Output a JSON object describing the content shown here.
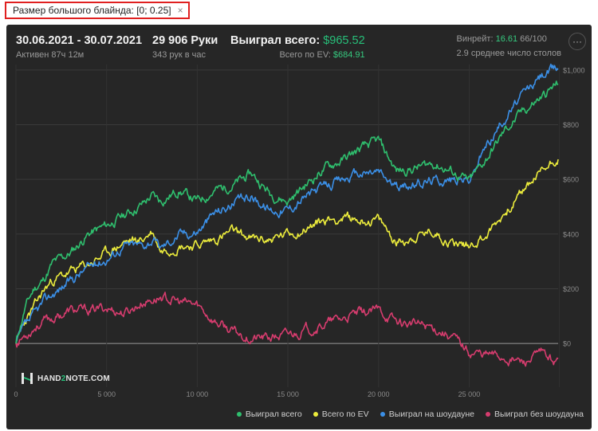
{
  "filter": {
    "label": "Размер большого блайнда: [0; 0.25]",
    "close_glyph": "×"
  },
  "header": {
    "date_range": "30.06.2021 - 30.07.2021",
    "active": "Активен 87ч 12м",
    "hands": "29 906 Руки",
    "hands_per_hour": "343 рук в час",
    "won_label": "Выиграл всего:",
    "won_value": "$965.52",
    "ev_label": "Всего по EV:",
    "ev_value": "$684.91",
    "winrate_label": "Винрейт:",
    "winrate_value": "16.61",
    "winrate_unit": "66/100",
    "tables": "2.9 среднее число столов",
    "menu_glyph": "···"
  },
  "logo": {
    "part1": "HAND",
    "part2": "2",
    "part3": "NOTE.COM"
  },
  "colors": {
    "won": "#2fbf6e",
    "ev": "#ecec3c",
    "showdown": "#3b8fe6",
    "noshowdown": "#d63c6e",
    "background": "#262626"
  },
  "chart_data": {
    "type": "line",
    "x_ticks": [
      0,
      5000,
      10000,
      15000,
      20000,
      25000
    ],
    "x_tick_labels": [
      "0",
      "5 000",
      "10 000",
      "15 000",
      "20 000",
      "25 000"
    ],
    "xlim": [
      0,
      29906
    ],
    "y_ticks": [
      0,
      200,
      400,
      600,
      800,
      1000
    ],
    "y_tick_labels": [
      "$0",
      "$200",
      "$400",
      "$600",
      "$800",
      "$1,000"
    ],
    "ylim": [
      -160,
      1020
    ],
    "grid": true,
    "legend_position": "bottom-right",
    "x": [
      0,
      500,
      1000,
      1500,
      2000,
      3000,
      4000,
      5000,
      6000,
      7000,
      7500,
      8000,
      9000,
      10000,
      11000,
      12000,
      13000,
      14000,
      15000,
      16000,
      17000,
      18000,
      19000,
      20000,
      21000,
      22000,
      23000,
      24000,
      25000,
      26000,
      27000,
      28000,
      29000,
      29906
    ],
    "series": [
      {
        "name": "Выиграл всего",
        "key": "won",
        "values": [
          0,
          130,
          200,
          230,
          290,
          330,
          400,
          430,
          470,
          510,
          540,
          520,
          560,
          520,
          560,
          580,
          620,
          550,
          520,
          580,
          640,
          670,
          710,
          740,
          630,
          640,
          660,
          630,
          590,
          680,
          780,
          850,
          900,
          950
        ]
      },
      {
        "name": "Всего по EV",
        "key": "ev",
        "values": [
          0,
          80,
          130,
          190,
          230,
          260,
          290,
          330,
          370,
          380,
          410,
          340,
          360,
          360,
          380,
          410,
          380,
          380,
          400,
          420,
          450,
          460,
          450,
          450,
          370,
          390,
          410,
          370,
          360,
          400,
          480,
          560,
          630,
          685
        ]
      },
      {
        "name": "Выиграл на шоудауне",
        "key": "showdown",
        "values": [
          0,
          60,
          100,
          150,
          180,
          230,
          280,
          310,
          360,
          360,
          380,
          350,
          400,
          410,
          480,
          510,
          540,
          490,
          490,
          540,
          570,
          600,
          620,
          630,
          570,
          580,
          600,
          600,
          600,
          730,
          830,
          910,
          980,
          1010
        ]
      },
      {
        "name": "Выиграл без шоудауна",
        "key": "noshowdown",
        "values": [
          0,
          30,
          60,
          80,
          90,
          120,
          120,
          130,
          110,
          150,
          160,
          170,
          150,
          140,
          80,
          40,
          20,
          20,
          30,
          50,
          70,
          90,
          110,
          120,
          80,
          70,
          60,
          30,
          -30,
          -40,
          -50,
          -70,
          -40,
          -70
        ]
      }
    ]
  }
}
